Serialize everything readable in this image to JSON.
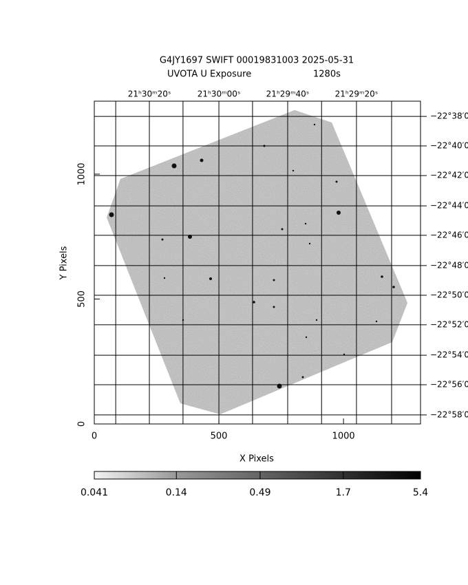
{
  "chart_data": {
    "type": "image",
    "title": "G4JY1697 SWIFT 00019831003 2025-05-31",
    "subtitle": "UVOTA U Exposure",
    "exposure": "1280s",
    "x_label": "X Pixels",
    "y_label": "Y Pixels",
    "xlim": [
      0,
      1309
    ],
    "ylim": [
      0,
      1292
    ],
    "xticks": [
      0,
      500,
      1000
    ],
    "yticks": [
      0,
      500,
      1000
    ],
    "ra_ticks": [
      {
        "value": 221,
        "label": "21ʰ30ᵐ20ˢ"
      },
      {
        "value": 500,
        "label": "21ʰ30ᵐ00ˢ"
      },
      {
        "value": 776,
        "label": "21ʰ29ᵐ40ˢ"
      },
      {
        "value": 1052,
        "label": "21ʰ29ᵐ20ˢ"
      }
    ],
    "ra_minor_grid": [
      86,
      356,
      635,
      912,
      1193
    ],
    "dec_ticks": [
      {
        "value": 1231,
        "label": "−22°38′0"
      },
      {
        "value": 1113,
        "label": "−22°40′0"
      },
      {
        "value": 994,
        "label": "−22°42′0"
      },
      {
        "value": 873,
        "label": "−22°44′0"
      },
      {
        "value": 755,
        "label": "−22°46′0"
      },
      {
        "value": 634,
        "label": "−22°48′0"
      },
      {
        "value": 515,
        "label": "−22°50′0"
      },
      {
        "value": 397,
        "label": "−22°52′0"
      },
      {
        "value": 275,
        "label": "−22°54′0"
      },
      {
        "value": 157,
        "label": "−22°56′0"
      },
      {
        "value": 36,
        "label": "−22°58′0"
      }
    ],
    "grid": true,
    "colorbar": {
      "lim": [
        0.041,
        5.4
      ],
      "ticks": [
        0.041,
        0.14,
        0.49,
        1.7,
        5.4
      ],
      "log": true
    }
  }
}
